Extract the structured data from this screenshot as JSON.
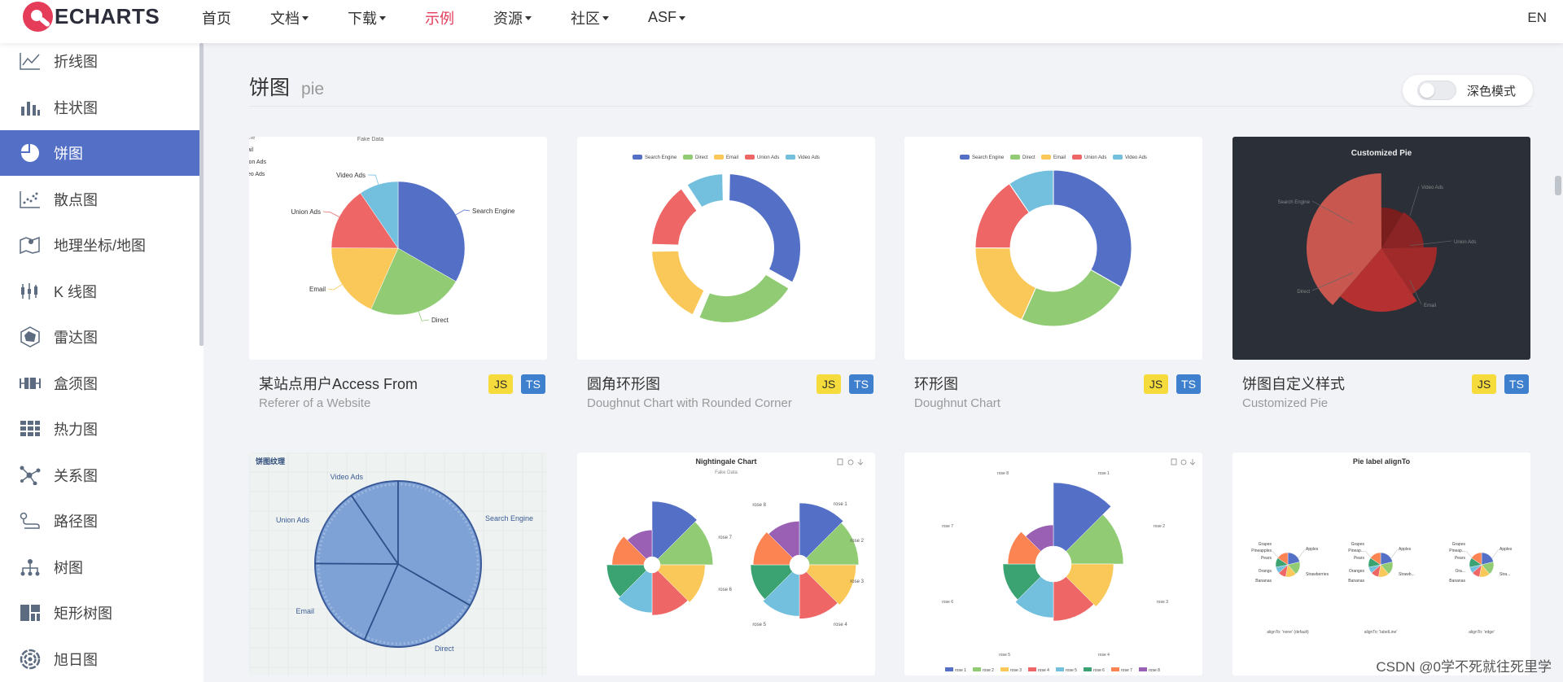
{
  "nav": {
    "logo": "ECHARTS",
    "items": [
      {
        "label": "首页",
        "dropdown": false,
        "active": false
      },
      {
        "label": "文档",
        "dropdown": true,
        "active": false
      },
      {
        "label": "下载",
        "dropdown": true,
        "active": false
      },
      {
        "label": "示例",
        "dropdown": false,
        "active": true
      },
      {
        "label": "资源",
        "dropdown": true,
        "active": false
      },
      {
        "label": "社区",
        "dropdown": true,
        "active": false
      },
      {
        "label": "ASF",
        "dropdown": true,
        "active": false
      }
    ],
    "lang": "EN",
    "accent": "#e43c59"
  },
  "sidebar": {
    "accent": "#5470c6",
    "items": [
      {
        "label": "折线图",
        "icon": "line-chart-icon"
      },
      {
        "label": "柱状图",
        "icon": "bar-chart-icon"
      },
      {
        "label": "饼图",
        "icon": "pie-chart-icon",
        "active": true
      },
      {
        "label": "散点图",
        "icon": "scatter-chart-icon"
      },
      {
        "label": "地理坐标/地图",
        "icon": "map-icon"
      },
      {
        "label": "K 线图",
        "icon": "candlestick-icon"
      },
      {
        "label": "雷达图",
        "icon": "radar-icon"
      },
      {
        "label": "盒须图",
        "icon": "boxplot-icon"
      },
      {
        "label": "热力图",
        "icon": "heatmap-icon"
      },
      {
        "label": "关系图",
        "icon": "graph-icon"
      },
      {
        "label": "路径图",
        "icon": "path-icon"
      },
      {
        "label": "树图",
        "icon": "tree-icon"
      },
      {
        "label": "矩形树图",
        "icon": "treemap-icon"
      },
      {
        "label": "旭日图",
        "icon": "sunburst-icon"
      }
    ]
  },
  "main": {
    "title_cn": "饼图",
    "title_en": "pie",
    "dark_mode_label": "深色模式",
    "badges": {
      "js": "JS",
      "ts": "TS"
    },
    "cards": [
      {
        "title": "某站点用户Access From",
        "subtitle": "Referer of a Website"
      },
      {
        "title": "圆角环形图",
        "subtitle": "Doughnut Chart with Rounded Corner"
      },
      {
        "title": "环形图",
        "subtitle": "Doughnut Chart"
      },
      {
        "title": "饼图自定义样式",
        "subtitle": "Customized Pie"
      }
    ]
  },
  "thumbs": {
    "palette": [
      "#5470c6",
      "#91cc75",
      "#fac858",
      "#ee6666",
      "#73c0de",
      "#3ba272",
      "#fc8452",
      "#9a60b4"
    ],
    "pie_labels": [
      "Search Engine",
      "Direct",
      "Email",
      "Union Ads",
      "Video Ads"
    ],
    "fake_data": "Fake Data",
    "partial_legend": [
      "ail",
      "ion Ads",
      "eo Ads"
    ],
    "partial_legend_top": "ine",
    "customized_title": "Customized Pie",
    "texture_title": "饼图纹理",
    "nightingale_title": "Nightingale Chart",
    "rose_labels": [
      "rose 1",
      "rose 2",
      "rose 3",
      "rose 4",
      "rose 5",
      "rose 6",
      "rose 7",
      "rose 8"
    ],
    "align_title": "Pie label alignTo",
    "fruit_labels": [
      "Grapes",
      "Pineapples",
      "Pears",
      "Orangs",
      "Bananas",
      "Apples",
      "Strawberries"
    ],
    "fruit_labels_short1": [
      "Grapes",
      "Pineap...",
      "Pears",
      "Oranges",
      "Bananas",
      "Apples",
      "Strawb..."
    ],
    "fruit_labels_short2": [
      "Grapes",
      "Pineap...",
      "Pears",
      "Ora...",
      "Bananas",
      "Apples",
      "Stra..."
    ],
    "align_captions": [
      "alignTo: 'none' (default)",
      "alignTo: 'labelLine'",
      "alignTo: 'edge'"
    ],
    "chart_values": {
      "access_from": [
        1048,
        735,
        580,
        484,
        300
      ],
      "nightingale_left": [
        40,
        38,
        32,
        30,
        28,
        26,
        22,
        18
      ],
      "nightingale_right": [
        30,
        28,
        26,
        24,
        22,
        20,
        18,
        16
      ]
    }
  },
  "watermark": "CSDN @0学不死就往死里学"
}
